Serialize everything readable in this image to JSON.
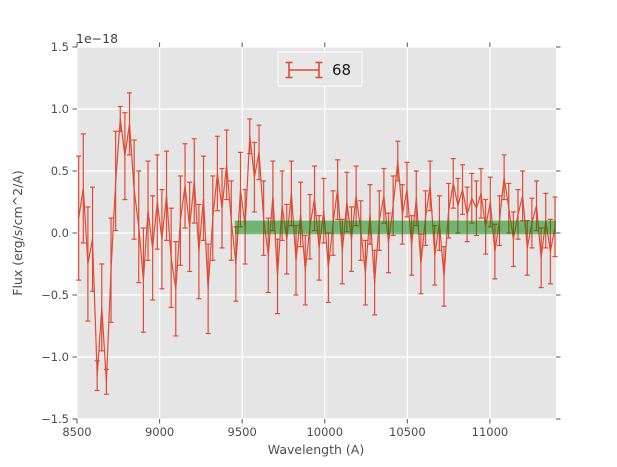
{
  "chart_data": {
    "type": "line",
    "subtype": "errorbar",
    "title": "",
    "xlabel": "Wavelength (A)",
    "ylabel": "Flux (erg/s/cm^2/A)",
    "offset_text": "1e−18",
    "flux_unit_scale": "1e-18",
    "xlim": [
      8500,
      11400
    ],
    "ylim": [
      -1.5,
      1.5
    ],
    "grid": true,
    "xticks": {
      "values": [
        8500,
        9000,
        9500,
        10000,
        10500,
        11000
      ],
      "labels": [
        "8500",
        "9000",
        "9500",
        "10000",
        "10500",
        "11000"
      ]
    },
    "yticks": {
      "values": [
        -1.5,
        -1.0,
        -0.5,
        0.0,
        0.5,
        1.0,
        1.5
      ],
      "labels": [
        "−1.5",
        "−1.0",
        "−0.5",
        "0.0",
        "0.5",
        "1.0",
        "1.5"
      ]
    },
    "legend": {
      "label": "68",
      "position": "upper center",
      "marker": "errorbar"
    },
    "band": {
      "x0": 9455,
      "x1": 11400,
      "y0": -0.01,
      "y1": 0.1,
      "color": "#008000",
      "alpha": 0.5
    },
    "colors": {
      "line": "#E24A33",
      "plot_background": "#E5E5E5",
      "grid": "#FFFFFF",
      "figure_background": "#FFFFFF",
      "tick_text": "#4d4d4d",
      "band_fill": "#008000"
    },
    "series": [
      {
        "name": "68",
        "x": [
          8510,
          8538,
          8566,
          8594,
          8622,
          8650,
          8678,
          8706,
          8734,
          8762,
          8790,
          8818,
          8846,
          8874,
          8902,
          8930,
          8958,
          8986,
          9014,
          9042,
          9070,
          9098,
          9126,
          9154,
          9182,
          9210,
          9238,
          9266,
          9294,
          9322,
          9350,
          9378,
          9406,
          9434,
          9462,
          9490,
          9518,
          9546,
          9574,
          9602,
          9630,
          9658,
          9686,
          9714,
          9742,
          9770,
          9798,
          9826,
          9854,
          9882,
          9910,
          9938,
          9966,
          9994,
          10022,
          10050,
          10078,
          10106,
          10134,
          10162,
          10190,
          10218,
          10246,
          10274,
          10302,
          10330,
          10358,
          10386,
          10414,
          10442,
          10470,
          10498,
          10526,
          10554,
          10582,
          10610,
          10638,
          10666,
          10694,
          10722,
          10750,
          10778,
          10806,
          10834,
          10862,
          10890,
          10918,
          10946,
          10974,
          11002,
          11030,
          11058,
          11086,
          11114,
          11142,
          11170,
          11198,
          11226,
          11254,
          11282,
          11310,
          11338,
          11366,
          11394
        ],
        "y": [
          0.12,
          0.36,
          -0.25,
          -0.05,
          -1.15,
          -0.6,
          -1.2,
          -0.3,
          0.42,
          0.92,
          0.62,
          0.88,
          0.35,
          0.05,
          -0.38,
          0.18,
          -0.12,
          0.25,
          -0.05,
          0.3,
          -0.2,
          -0.45,
          0.1,
          0.38,
          0.05,
          0.42,
          -0.15,
          0.28,
          -0.45,
          0.12,
          0.48,
          0.2,
          0.55,
          0.1,
          -0.25,
          0.35,
          0.05,
          0.78,
          0.45,
          0.65,
          0.12,
          -0.18,
          0.3,
          -0.35,
          0.22,
          -0.05,
          0.32,
          -0.22,
          0.15,
          -0.3,
          0.05,
          0.28,
          -0.12,
          0.18,
          -0.28,
          0.08,
          0.35,
          -0.15,
          0.25,
          -0.05,
          0.3,
          0.02,
          -0.32,
          0.15,
          -0.4,
          0.1,
          0.3,
          -0.08,
          0.22,
          0.58,
          0.15,
          0.35,
          -0.1,
          0.28,
          -0.25,
          0.12,
          0.38,
          -0.18,
          0.08,
          -0.35,
          0.18,
          0.4,
          0.22,
          0.35,
          0.15,
          0.28,
          0.2,
          0.32,
          0.05,
          0.25,
          -0.15,
          0.1,
          0.45,
          0.2,
          -0.05,
          0.15,
          0.3,
          -0.12,
          0.08,
          0.22,
          -0.2,
          0.1,
          -0.15,
          0.05
        ],
        "yerr": [
          0.5,
          0.44,
          0.46,
          0.42,
          0.12,
          0.35,
          0.1,
          0.42,
          0.4,
          0.1,
          0.35,
          0.25,
          0.4,
          0.45,
          0.42,
          0.4,
          0.42,
          0.38,
          0.4,
          0.36,
          0.4,
          0.38,
          0.36,
          0.34,
          0.36,
          0.34,
          0.38,
          0.34,
          0.36,
          0.34,
          0.3,
          0.32,
          0.28,
          0.32,
          0.3,
          0.3,
          0.3,
          0.14,
          0.28,
          0.22,
          0.3,
          0.3,
          0.28,
          0.3,
          0.28,
          0.28,
          0.26,
          0.28,
          0.26,
          0.28,
          0.26,
          0.26,
          0.26,
          0.26,
          0.28,
          0.26,
          0.24,
          0.26,
          0.24,
          0.26,
          0.24,
          0.24,
          0.26,
          0.24,
          0.26,
          0.24,
          0.22,
          0.24,
          0.24,
          0.16,
          0.24,
          0.22,
          0.24,
          0.22,
          0.24,
          0.22,
          0.2,
          0.24,
          0.22,
          0.24,
          0.22,
          0.2,
          0.22,
          0.2,
          0.22,
          0.2,
          0.22,
          0.2,
          0.22,
          0.2,
          0.22,
          0.2,
          0.18,
          0.2,
          0.22,
          0.2,
          0.2,
          0.22,
          0.2,
          0.2,
          0.24,
          0.22,
          0.26,
          0.24
        ]
      }
    ]
  }
}
